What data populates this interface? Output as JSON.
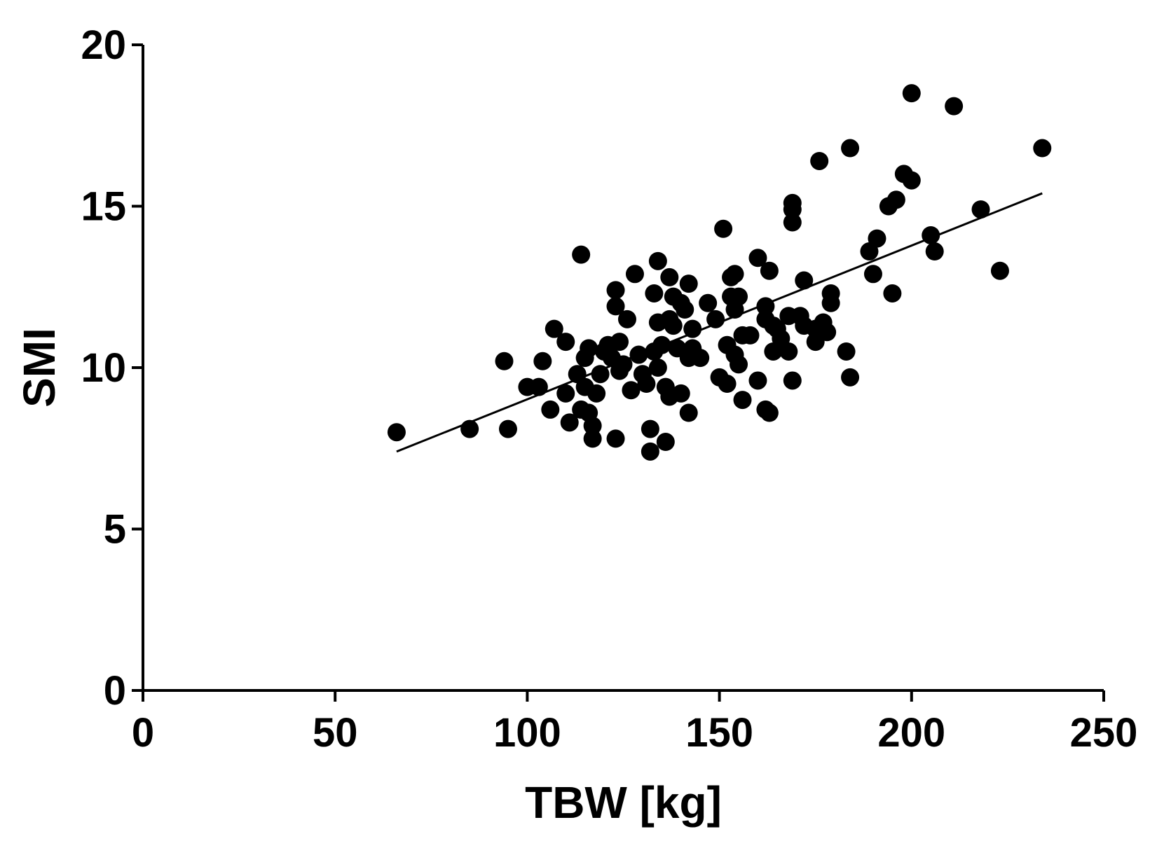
{
  "chart_data": {
    "type": "scatter",
    "xlabel": "TBW [kg]",
    "ylabel": "SMI",
    "xlim": [
      0,
      250
    ],
    "ylim": [
      0,
      20
    ],
    "xticks": [
      0,
      50,
      100,
      150,
      200,
      250
    ],
    "yticks": [
      0,
      5,
      10,
      15,
      20
    ],
    "grid": false,
    "marker_color": "#000000",
    "trendline": {
      "x": [
        66,
        234
      ],
      "y": [
        7.4,
        15.4
      ]
    },
    "points": [
      [
        66,
        8.0
      ],
      [
        85,
        8.1
      ],
      [
        94,
        10.2
      ],
      [
        95,
        8.1
      ],
      [
        100,
        9.4
      ],
      [
        103,
        9.4
      ],
      [
        104,
        10.2
      ],
      [
        106,
        8.7
      ],
      [
        107,
        11.2
      ],
      [
        110,
        10.8
      ],
      [
        110,
        9.2
      ],
      [
        111,
        8.3
      ],
      [
        113,
        9.8
      ],
      [
        114,
        13.5
      ],
      [
        114,
        8.7
      ],
      [
        115,
        10.3
      ],
      [
        115,
        9.4
      ],
      [
        116,
        10.6
      ],
      [
        116,
        8.6
      ],
      [
        117,
        8.2
      ],
      [
        117,
        7.8
      ],
      [
        118,
        9.2
      ],
      [
        119,
        9.8
      ],
      [
        120,
        10.5
      ],
      [
        121,
        10.7
      ],
      [
        122,
        10.3
      ],
      [
        123,
        12.4
      ],
      [
        123,
        11.9
      ],
      [
        123,
        7.8
      ],
      [
        124,
        10.8
      ],
      [
        124,
        9.9
      ],
      [
        125,
        10.1
      ],
      [
        126,
        11.5
      ],
      [
        127,
        9.3
      ],
      [
        128,
        12.9
      ],
      [
        129,
        10.4
      ],
      [
        130,
        9.8
      ],
      [
        131,
        9.5
      ],
      [
        132,
        8.1
      ],
      [
        132,
        7.4
      ],
      [
        133,
        12.3
      ],
      [
        133,
        10.5
      ],
      [
        134,
        13.3
      ],
      [
        134,
        11.4
      ],
      [
        134,
        10.0
      ],
      [
        135,
        10.7
      ],
      [
        136,
        9.4
      ],
      [
        136,
        7.7
      ],
      [
        137,
        12.8
      ],
      [
        137,
        11.5
      ],
      [
        137,
        9.1
      ],
      [
        138,
        12.2
      ],
      [
        138,
        11.3
      ],
      [
        139,
        10.6
      ],
      [
        140,
        12.0
      ],
      [
        140,
        9.2
      ],
      [
        141,
        11.8
      ],
      [
        142,
        12.6
      ],
      [
        142,
        10.3
      ],
      [
        142,
        8.6
      ],
      [
        143,
        11.2
      ],
      [
        143,
        10.6
      ],
      [
        145,
        10.3
      ],
      [
        147,
        12.0
      ],
      [
        149,
        11.5
      ],
      [
        150,
        9.7
      ],
      [
        151,
        14.3
      ],
      [
        152,
        10.7
      ],
      [
        152,
        9.5
      ],
      [
        153,
        12.8
      ],
      [
        153,
        12.2
      ],
      [
        154,
        12.9
      ],
      [
        154,
        11.8
      ],
      [
        154,
        10.4
      ],
      [
        155,
        12.2
      ],
      [
        155,
        10.1
      ],
      [
        156,
        11.0
      ],
      [
        156,
        9.0
      ],
      [
        158,
        11.0
      ],
      [
        160,
        13.4
      ],
      [
        160,
        9.6
      ],
      [
        162,
        11.9
      ],
      [
        162,
        11.5
      ],
      [
        162,
        8.7
      ],
      [
        163,
        13.0
      ],
      [
        163,
        8.6
      ],
      [
        164,
        11.3
      ],
      [
        164,
        10.5
      ],
      [
        165,
        11.2
      ],
      [
        166,
        10.9
      ],
      [
        168,
        11.6
      ],
      [
        168,
        10.5
      ],
      [
        169,
        9.6
      ],
      [
        169,
        15.1
      ],
      [
        169,
        14.9
      ],
      [
        169,
        14.5
      ],
      [
        171,
        11.6
      ],
      [
        172,
        12.7
      ],
      [
        172,
        11.3
      ],
      [
        175,
        11.2
      ],
      [
        175,
        10.8
      ],
      [
        176,
        16.4
      ],
      [
        177,
        11.4
      ],
      [
        178,
        11.1
      ],
      [
        179,
        12.0
      ],
      [
        179,
        12.3
      ],
      [
        183,
        10.5
      ],
      [
        184,
        9.7
      ],
      [
        184,
        16.8
      ],
      [
        189,
        13.6
      ],
      [
        190,
        12.9
      ],
      [
        191,
        14.0
      ],
      [
        194,
        15.0
      ],
      [
        195,
        12.3
      ],
      [
        196,
        15.2
      ],
      [
        198,
        16.0
      ],
      [
        200,
        18.5
      ],
      [
        200,
        15.8
      ],
      [
        205,
        14.1
      ],
      [
        206,
        13.6
      ],
      [
        211,
        18.1
      ],
      [
        218,
        14.9
      ],
      [
        223,
        13.0
      ],
      [
        234,
        16.8
      ]
    ]
  }
}
